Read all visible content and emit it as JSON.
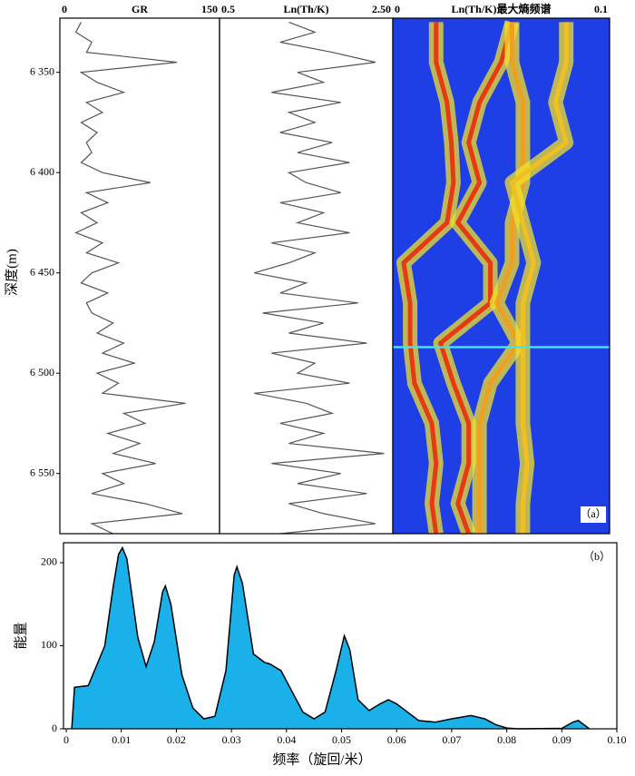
{
  "chart_data": [
    {
      "type": "line",
      "title": "GR",
      "ylabel": "深度(m)",
      "xlim": [
        0,
        150
      ],
      "xticks": [
        0,
        150
      ],
      "ylim": [
        6323,
        6580
      ],
      "yticks": [
        {
          "value": 6350,
          "label": "6 350"
        },
        {
          "value": 6400,
          "label": "6 400"
        },
        {
          "value": 6450,
          "label": "6 450"
        },
        {
          "value": 6500,
          "label": "6 500"
        },
        {
          "value": 6550,
          "label": "6 550"
        }
      ],
      "y": [
        6325,
        6330,
        6335,
        6340,
        6345,
        6350,
        6355,
        6360,
        6365,
        6370,
        6375,
        6380,
        6385,
        6390,
        6395,
        6400,
        6405,
        6410,
        6415,
        6420,
        6425,
        6430,
        6435,
        6440,
        6445,
        6450,
        6455,
        6460,
        6465,
        6470,
        6475,
        6480,
        6485,
        6490,
        6495,
        6500,
        6505,
        6510,
        6515,
        6520,
        6525,
        6530,
        6535,
        6540,
        6545,
        6550,
        6555,
        6560,
        6565,
        6570,
        6575,
        6580
      ],
      "series": [
        {
          "color": "#555555",
          "values": [
            20,
            15,
            30,
            25,
            110,
            20,
            35,
            60,
            25,
            40,
            20,
            35,
            25,
            30,
            20,
            40,
            85,
            25,
            45,
            20,
            35,
            15,
            40,
            25,
            55,
            30,
            20,
            45,
            25,
            30,
            50,
            35,
            60,
            40,
            70,
            35,
            55,
            40,
            118,
            60,
            80,
            45,
            75,
            50,
            90,
            40,
            60,
            30,
            80,
            115,
            30,
            50
          ]
        }
      ]
    },
    {
      "type": "line",
      "title": "Ln(Th/K)",
      "xlim": [
        0.5,
        2.5
      ],
      "xticks": [
        0.5,
        {
          "value": 2.5,
          "label": "2.50"
        }
      ],
      "ylim": [
        6323,
        6580
      ],
      "y": [
        6325,
        6330,
        6335,
        6340,
        6345,
        6350,
        6355,
        6360,
        6365,
        6370,
        6375,
        6380,
        6385,
        6390,
        6395,
        6400,
        6405,
        6410,
        6415,
        6420,
        6425,
        6430,
        6435,
        6440,
        6445,
        6450,
        6455,
        6460,
        6465,
        6470,
        6475,
        6480,
        6485,
        6490,
        6495,
        6500,
        6505,
        6510,
        6515,
        6520,
        6525,
        6530,
        6535,
        6540,
        6545,
        6550,
        6555,
        6560,
        6565,
        6570,
        6575,
        6580
      ],
      "series": [
        {
          "color": "#555555",
          "values": [
            1.3,
            1.6,
            1.2,
            1.8,
            2.3,
            1.4,
            1.7,
            1.1,
            1.9,
            1.3,
            1.6,
            1.2,
            1.8,
            1.4,
            2.0,
            1.3,
            1.5,
            1.9,
            1.2,
            1.7,
            1.4,
            2.0,
            1.1,
            1.6,
            1.3,
            0.9,
            1.5,
            1.2,
            2.1,
            1.0,
            1.7,
            1.3,
            2.2,
            1.1,
            1.6,
            1.4,
            2.0,
            0.9,
            1.5,
            1.8,
            1.2,
            1.7,
            1.3,
            2.4,
            1.1,
            1.9,
            1.4,
            2.2,
            1.3,
            1.7,
            2.3,
            1.2
          ]
        }
      ]
    },
    {
      "type": "spectrogram",
      "title": "Ln(Th/K)最大熵频谱",
      "annotation": "（a）",
      "xlim": [
        0,
        0.1
      ],
      "xticks": [
        0,
        0.1
      ],
      "ylim": [
        6323,
        6580
      ],
      "background": "#1f3fe6",
      "glow_color": "#f2e22a",
      "marker_depth": 6487,
      "marker_color": "#3ee6e6",
      "y": [
        6325,
        6345,
        6365,
        6385,
        6405,
        6425,
        6445,
        6465,
        6485,
        6505,
        6525,
        6545,
        6565,
        6580
      ],
      "series": [
        {
          "color": "#e83a10",
          "values": [
            0.02,
            0.02,
            0.025,
            0.027,
            0.028,
            0.025,
            0.005,
            0.008,
            0.008,
            0.01,
            0.018,
            0.02,
            0.018,
            0.02
          ]
        },
        {
          "color": "#e83a10",
          "values": [
            0.055,
            0.05,
            0.04,
            0.035,
            0.04,
            0.03,
            0.045,
            0.045,
            0.022,
            0.028,
            0.035,
            0.035,
            0.03,
            0.035
          ]
        },
        {
          "color": "#f0a020",
          "values": [
            0.055,
            0.055,
            0.06,
            0.06,
            0.06,
            0.055,
            0.055,
            0.048,
            0.058,
            0.045,
            0.04,
            0.04,
            0.04,
            0.04
          ]
        },
        {
          "color": "#f0c020",
          "values": [
            0.08,
            0.08,
            0.075,
            0.08,
            0.055,
            0.06,
            0.065,
            0.06,
            0.06,
            0.06,
            0.06,
            0.062,
            0.06,
            0.06
          ]
        }
      ]
    },
    {
      "type": "area",
      "ylabel": "能量",
      "xlabel": "频率（旋回/米）",
      "annotation": "（b）",
      "color": "#1ab0ea",
      "xlim": [
        -0.0005,
        0.1
      ],
      "xticks": [
        0,
        0.01,
        0.02,
        0.03,
        0.04,
        0.05,
        0.06,
        0.07,
        0.08,
        0.09,
        {
          "value": 0.1,
          "label": "0.10"
        }
      ],
      "ylim": [
        0,
        224
      ],
      "yticks": [
        0,
        100,
        200
      ],
      "x": [
        0.001,
        0.0015,
        0.004,
        0.007,
        0.0085,
        0.0095,
        0.0102,
        0.011,
        0.013,
        0.0145,
        0.016,
        0.0175,
        0.018,
        0.019,
        0.021,
        0.023,
        0.025,
        0.027,
        0.029,
        0.0305,
        0.031,
        0.032,
        0.034,
        0.036,
        0.037,
        0.039,
        0.041,
        0.043,
        0.045,
        0.047,
        0.049,
        0.0505,
        0.0515,
        0.053,
        0.055,
        0.057,
        0.0585,
        0.06,
        0.062,
        0.064,
        0.067,
        0.07,
        0.0735,
        0.076,
        0.078,
        0.08,
        0.082,
        0.09,
        0.092,
        0.093,
        0.095
      ],
      "values": [
        0,
        50,
        52,
        100,
        170,
        210,
        218,
        205,
        110,
        75,
        105,
        165,
        172,
        150,
        65,
        25,
        12,
        15,
        70,
        185,
        195,
        175,
        90,
        80,
        78,
        70,
        45,
        20,
        12,
        20,
        70,
        112,
        95,
        35,
        22,
        30,
        35,
        30,
        20,
        10,
        8,
        12,
        16,
        12,
        5,
        1,
        0,
        0.5,
        8,
        10,
        0
      ]
    }
  ]
}
